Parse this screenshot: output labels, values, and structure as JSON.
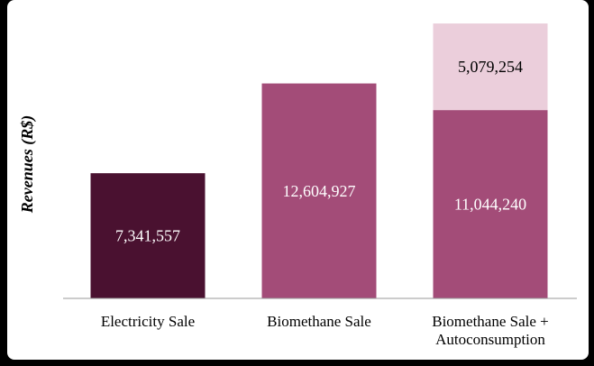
{
  "chart_data": {
    "type": "bar",
    "stacked": true,
    "title": "",
    "xlabel": "",
    "ylabel": "Revenues (R$)",
    "ylim": [
      0,
      17500000
    ],
    "grid": false,
    "legend": "none",
    "categories": [
      "Electricity Sale",
      "Biomethane Sale",
      "Biomethane Sale + Autoconsumption"
    ],
    "category_lines": [
      [
        "Electricity Sale"
      ],
      [
        "Biomethane Sale"
      ],
      [
        "Biomethane Sale +",
        "Autoconsumption"
      ]
    ],
    "bars": [
      {
        "category": "Electricity Sale",
        "segments": [
          {
            "value": 7341557,
            "label": "7,341,557",
            "color": "#4a1130",
            "label_color": "#ffffff"
          }
        ]
      },
      {
        "category": "Biomethane Sale",
        "segments": [
          {
            "value": 12604927,
            "label": "12,604,927",
            "color": "#a34c78",
            "label_color": "#ffffff"
          }
        ]
      },
      {
        "category": "Biomethane Sale + Autoconsumption",
        "segments": [
          {
            "value": 11044240,
            "label": "11,044,240",
            "color": "#a34c78",
            "label_color": "#ffffff"
          },
          {
            "value": 5079254,
            "label": "5,079,254",
            "color": "#ebcedb",
            "label_color": "#000000"
          }
        ]
      }
    ],
    "colors": {
      "axis": "#9a9a9a",
      "background": "#ffffff",
      "frame": "#000000"
    }
  }
}
